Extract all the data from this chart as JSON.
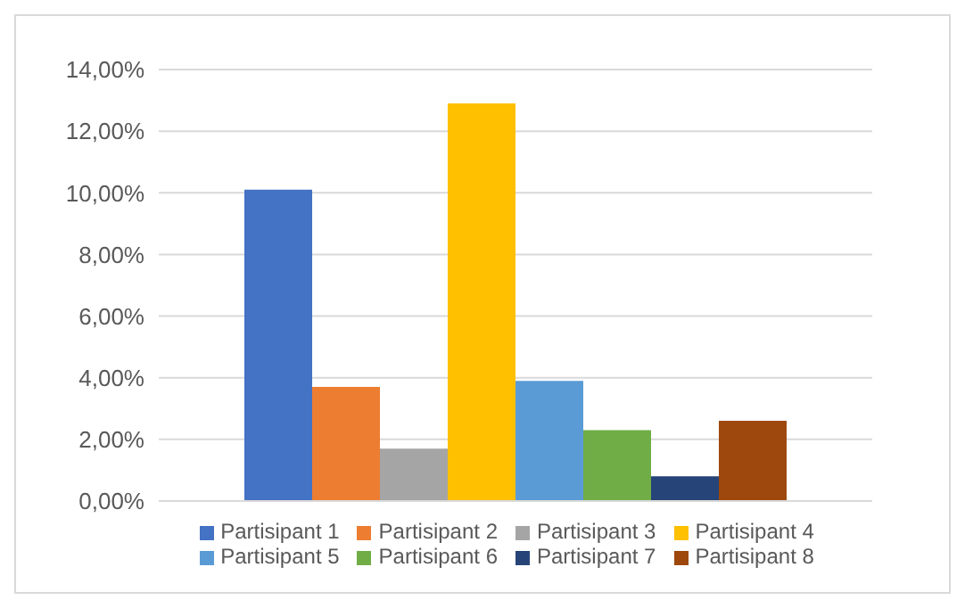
{
  "chart_data": {
    "type": "bar",
    "categories": [
      null
    ],
    "series": [
      {
        "name": "Partisipant 1",
        "color": "#4472c4",
        "values": [
          10.1
        ]
      },
      {
        "name": "Partisipant 2",
        "color": "#ed7d31",
        "values": [
          3.7
        ]
      },
      {
        "name": "Partisipant 3",
        "color": "#a5a5a5",
        "values": [
          1.7
        ]
      },
      {
        "name": "Partisipant 4",
        "color": "#ffc000",
        "values": [
          12.9
        ]
      },
      {
        "name": "Partisipant 5",
        "color": "#5b9bd5",
        "values": [
          3.9
        ]
      },
      {
        "name": "Partisipant 6",
        "color": "#70ad47",
        "values": [
          2.3
        ]
      },
      {
        "name": "Partisipant 7",
        "color": "#264478",
        "values": [
          0.8
        ]
      },
      {
        "name": "Partisipant 8",
        "color": "#9e480e",
        "values": [
          2.6
        ]
      }
    ],
    "ylim": [
      0,
      14
    ],
    "yticks": [
      {
        "value": 0,
        "label": "0,00%"
      },
      {
        "value": 2,
        "label": "2,00%"
      },
      {
        "value": 4,
        "label": "4,00%"
      },
      {
        "value": 6,
        "label": "6,00%"
      },
      {
        "value": 8,
        "label": "8,00%"
      },
      {
        "value": 10,
        "label": "10,00%"
      },
      {
        "value": 12,
        "label": "12,00%"
      },
      {
        "value": 14,
        "label": "14,00%"
      }
    ],
    "grid": "y",
    "legend": "bottom"
  }
}
